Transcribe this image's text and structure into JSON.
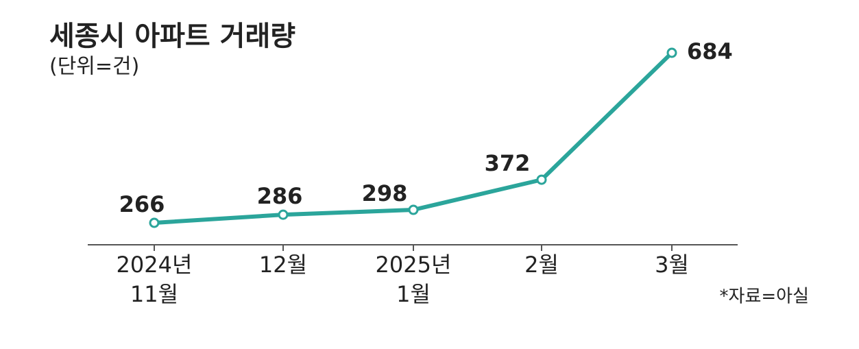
{
  "chart_data": {
    "type": "line",
    "title": "세종시 아파트 거래량",
    "subtitle": "(단위=건)",
    "source": "*자료=아실",
    "categories": [
      [
        "2024년",
        "11월"
      ],
      [
        "12월"
      ],
      [
        "2025년",
        "1월"
      ],
      [
        "2월"
      ],
      [
        "3월"
      ]
    ],
    "values": [
      266,
      286,
      298,
      372,
      684
    ],
    "color": "#2ba59b"
  }
}
